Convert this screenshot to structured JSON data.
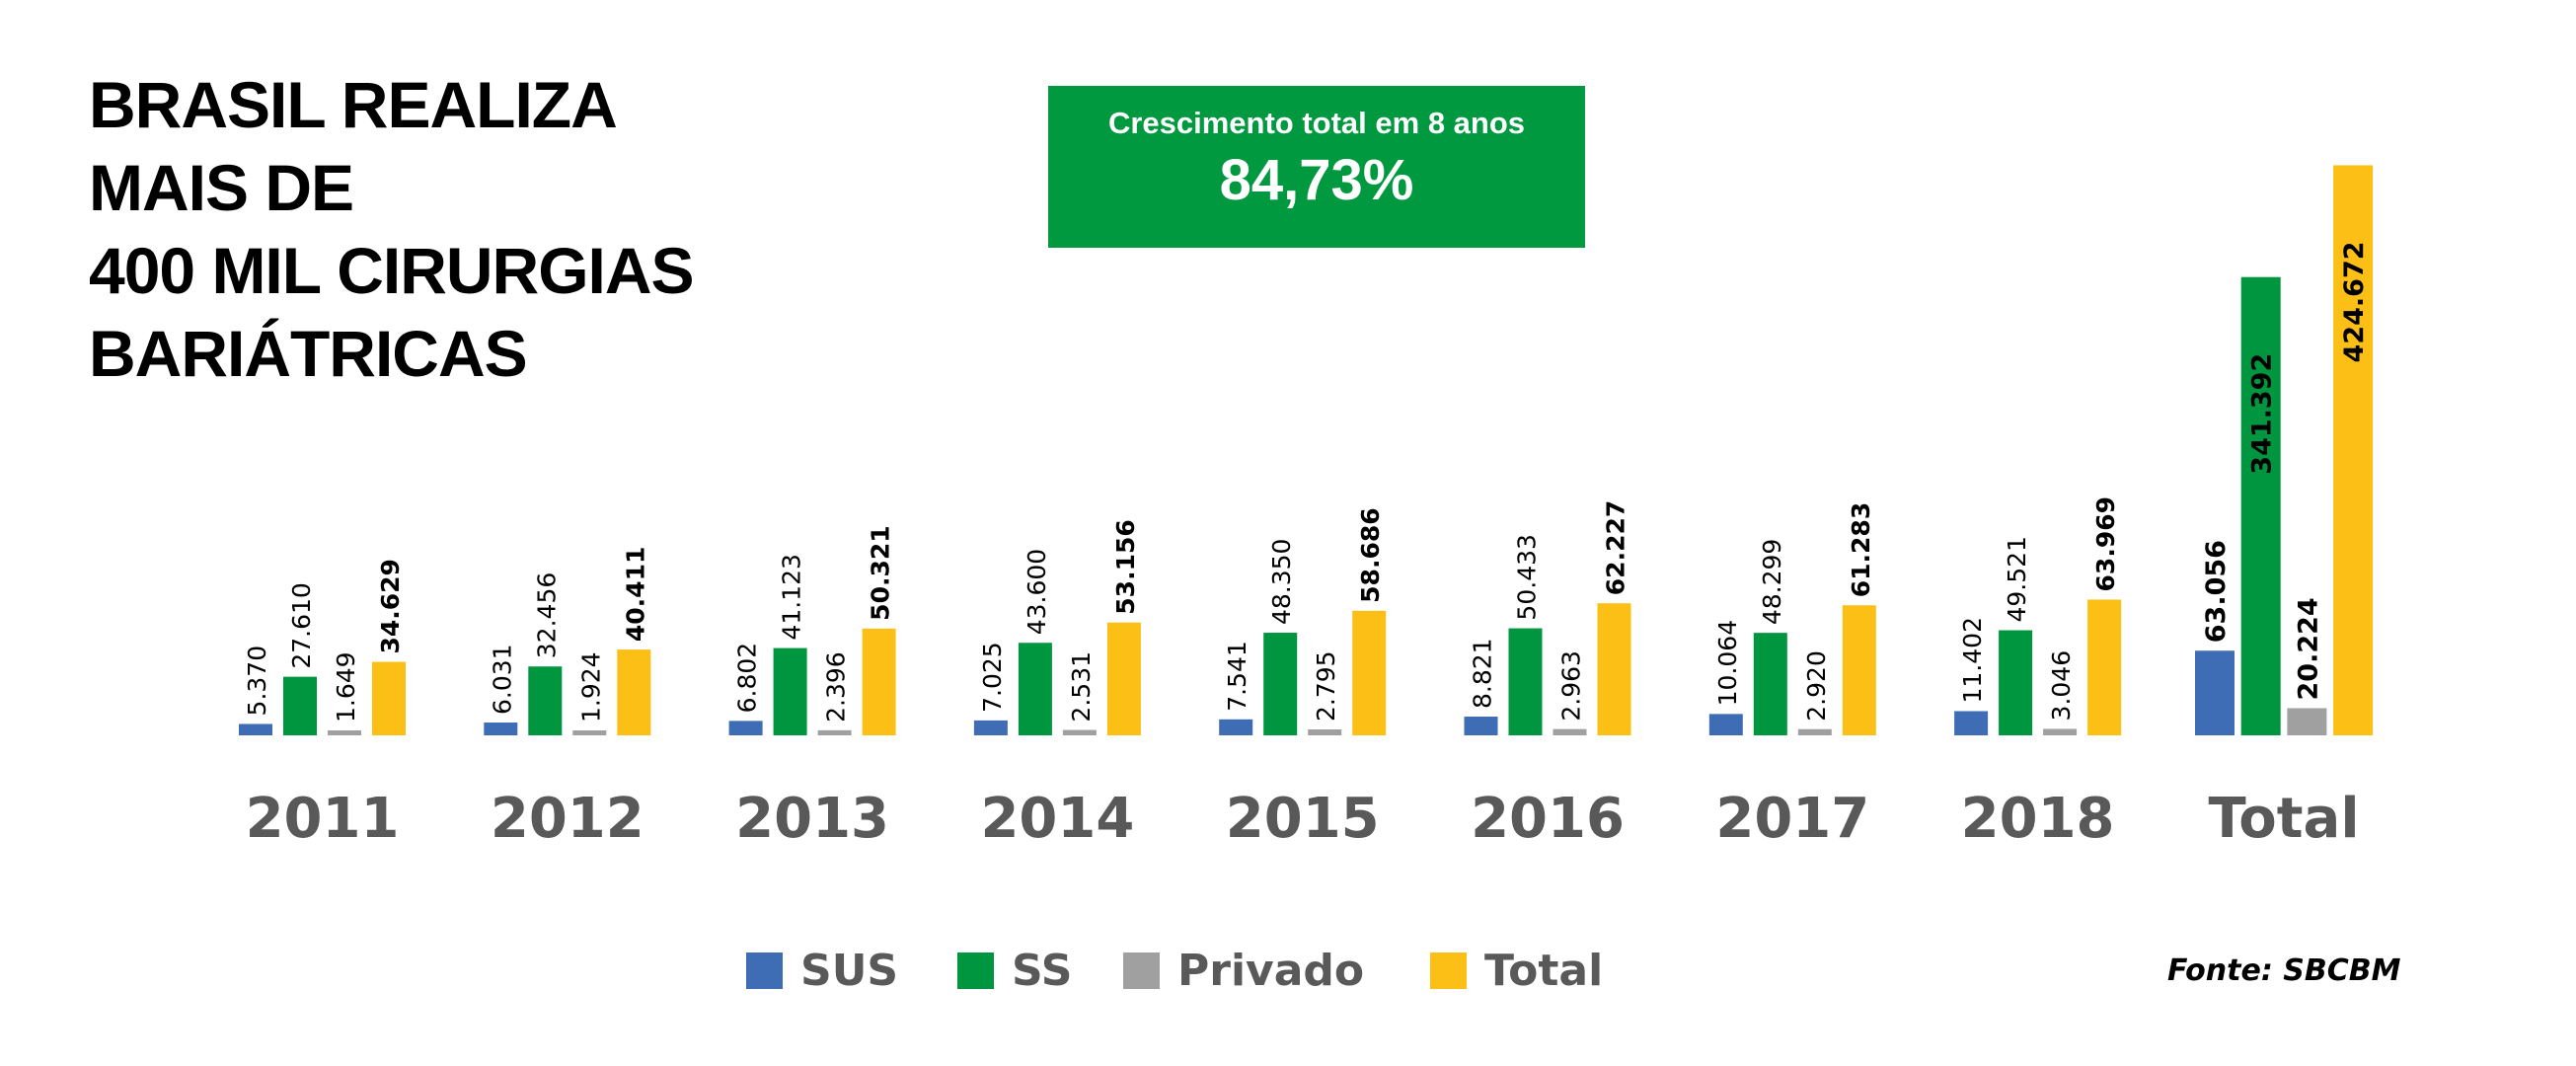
{
  "title_lines": [
    "BRASIL REALIZA",
    "MAIS DE",
    "400 MIL CIRURGIAS",
    "BARIÁTRICAS"
  ],
  "growth": {
    "label": "Crescimento total em 8 anos",
    "value": "84,73%"
  },
  "source": "Fonte: SBCBM",
  "chart_data": {
    "type": "bar",
    "categories": [
      "2011",
      "2012",
      "2013",
      "2014",
      "2015",
      "2016",
      "2017",
      "2018",
      "Total"
    ],
    "series": [
      {
        "name": "SUS",
        "color": "#3F6DB5",
        "values": [
          5370,
          6031,
          6802,
          7025,
          7541,
          8821,
          10064,
          11402,
          63056
        ],
        "labels": [
          "5.370",
          "6.031",
          "6.802",
          "7.025",
          "7.541",
          "8.821",
          "10.064",
          "11.402",
          "63.056"
        ]
      },
      {
        "name": "SS",
        "color": "#009640",
        "values": [
          27610,
          32456,
          41123,
          43600,
          48350,
          50433,
          48299,
          49521,
          341392
        ],
        "labels": [
          "27.610",
          "32.456",
          "41.123",
          "43.600",
          "48.350",
          "50.433",
          "48.299",
          "49.521",
          "341.392"
        ]
      },
      {
        "name": "Privado",
        "color": "#A0A0A0",
        "values": [
          1649,
          1924,
          2396,
          2531,
          2795,
          2963,
          2920,
          3046,
          20224
        ],
        "labels": [
          "1.649",
          "1.924",
          "2.396",
          "2.531",
          "2.795",
          "2.963",
          "2.920",
          "3.046",
          "20.224"
        ]
      },
      {
        "name": "Total",
        "color": "#FBBF16",
        "values": [
          34629,
          40411,
          50321,
          53156,
          58686,
          62227,
          61283,
          63969,
          424672
        ],
        "labels": [
          "34.629",
          "40.411",
          "50.321",
          "53.156",
          "58.686",
          "62.227",
          "61.283",
          "63.969",
          "424.672"
        ]
      }
    ],
    "xlabel": "",
    "ylabel": "",
    "grid": false,
    "legend": "bottom",
    "data_labels": "rotated vertical"
  }
}
